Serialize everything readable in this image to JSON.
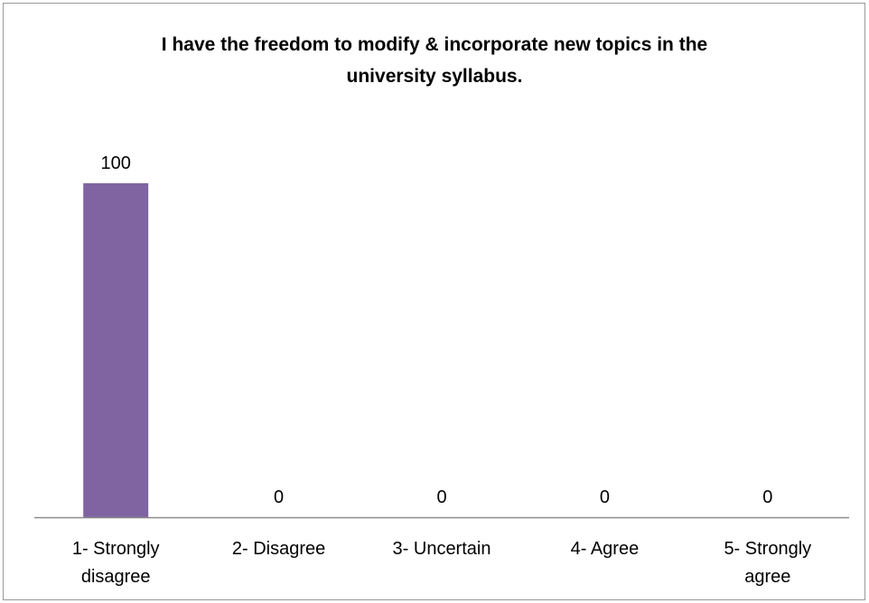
{
  "chart_data": {
    "type": "bar",
    "title": "I have the freedom to modify & incorporate new topics in the university syllabus.",
    "title_lines": [
      "I have the freedom to modify & incorporate new topics in the",
      "university syllabus."
    ],
    "categories": [
      "1- Strongly disagree",
      "2- Disagree",
      "3- Uncertain",
      "4- Agree",
      "5- Strongly agree"
    ],
    "category_lines": [
      [
        "1- Strongly",
        "disagree"
      ],
      [
        "2- Disagree"
      ],
      [
        "3- Uncertain"
      ],
      [
        "4- Agree"
      ],
      [
        "5- Strongly",
        "agree"
      ]
    ],
    "values": [
      100,
      0,
      0,
      0,
      0
    ],
    "data_labels": [
      "100",
      "0",
      "0",
      "0",
      "0"
    ],
    "ylim": [
      0,
      100
    ],
    "grid": false,
    "legend": "none",
    "bar_color": "#8064a2",
    "axis_color": "#8c8c8c",
    "xlabel": "",
    "ylabel": ""
  }
}
